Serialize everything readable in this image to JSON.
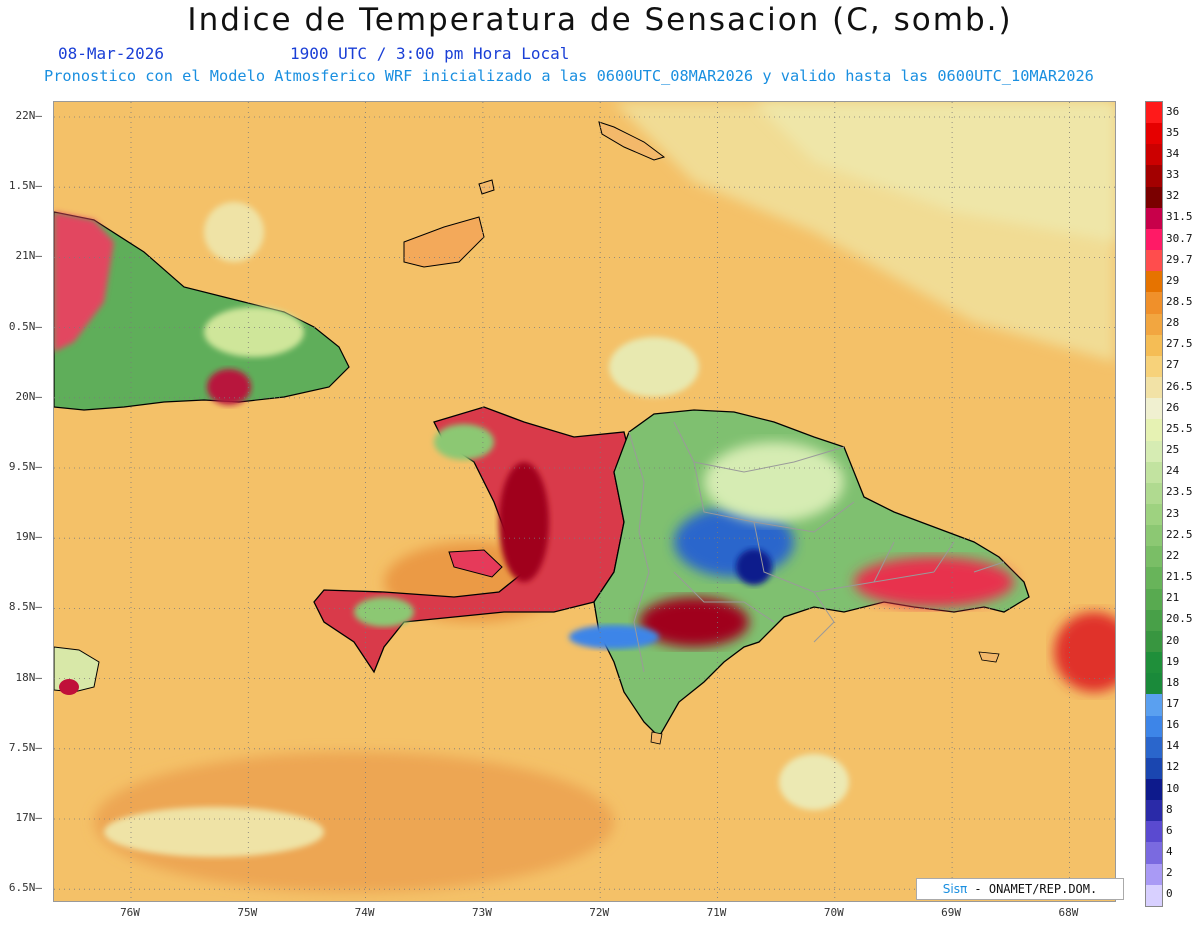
{
  "header": {
    "title": "Indice de Temperatura de Sensacion (C, somb.)",
    "date": "08-Mar-2026",
    "time": "1900 UTC / 3:00 pm Hora Local",
    "model_line": "Pronostico con el Modelo Atmosferico WRF inicializado a las 0600UTC_08MAR2026 y valido hasta las  0600UTC_10MAR2026"
  },
  "axes": {
    "lat_labels": [
      "22N",
      "1.5N",
      "21N",
      "0.5N",
      "20N",
      "9.5N",
      "19N",
      "8.5N",
      "18N",
      "7.5N",
      "17N",
      "6.5N"
    ],
    "lon_labels": [
      "76W",
      "75W",
      "74W",
      "73W",
      "72W",
      "71W",
      "70W",
      "69W",
      "68W"
    ]
  },
  "colorbar": {
    "labels": [
      "36",
      "35",
      "34",
      "33",
      "32",
      "31.5",
      "30.7",
      "29.7",
      "29",
      "28.5",
      "28",
      "27.5",
      "27",
      "26.5",
      "26",
      "25.5",
      "25",
      "24",
      "23.5",
      "23",
      "22.5",
      "22",
      "21.5",
      "21",
      "20.5",
      "20",
      "19",
      "18",
      "17",
      "16",
      "14",
      "12",
      "10",
      "8",
      "6",
      "4",
      "2",
      "0"
    ],
    "colors": [
      "#ff1a1a",
      "#e60000",
      "#cc0000",
      "#a30000",
      "#7a0000",
      "#c8004a",
      "#ff1a66",
      "#ff4d4d",
      "#e67300",
      "#f0902a",
      "#f2a640",
      "#f5bd55",
      "#f7d27a",
      "#f2e2a6",
      "#f0f0d0",
      "#e6f2b3",
      "#d6ecb3",
      "#c2e3a0",
      "#b0da90",
      "#9ed280",
      "#8cc873",
      "#7abe66",
      "#68b45a",
      "#58aa50",
      "#48a048",
      "#389640",
      "#1f8f3a",
      "#1a8a3a",
      "#5aa0f0",
      "#3d85e8",
      "#2a66cc",
      "#1a46b0",
      "#0d1a8c",
      "#2a2aa8",
      "#5a4ad0",
      "#7a6ae0",
      "#a99af5",
      "#d8d0ff"
    ]
  },
  "credit": {
    "brand": "Sisπ",
    "text": " - ONAMET/REP.DOM."
  }
}
